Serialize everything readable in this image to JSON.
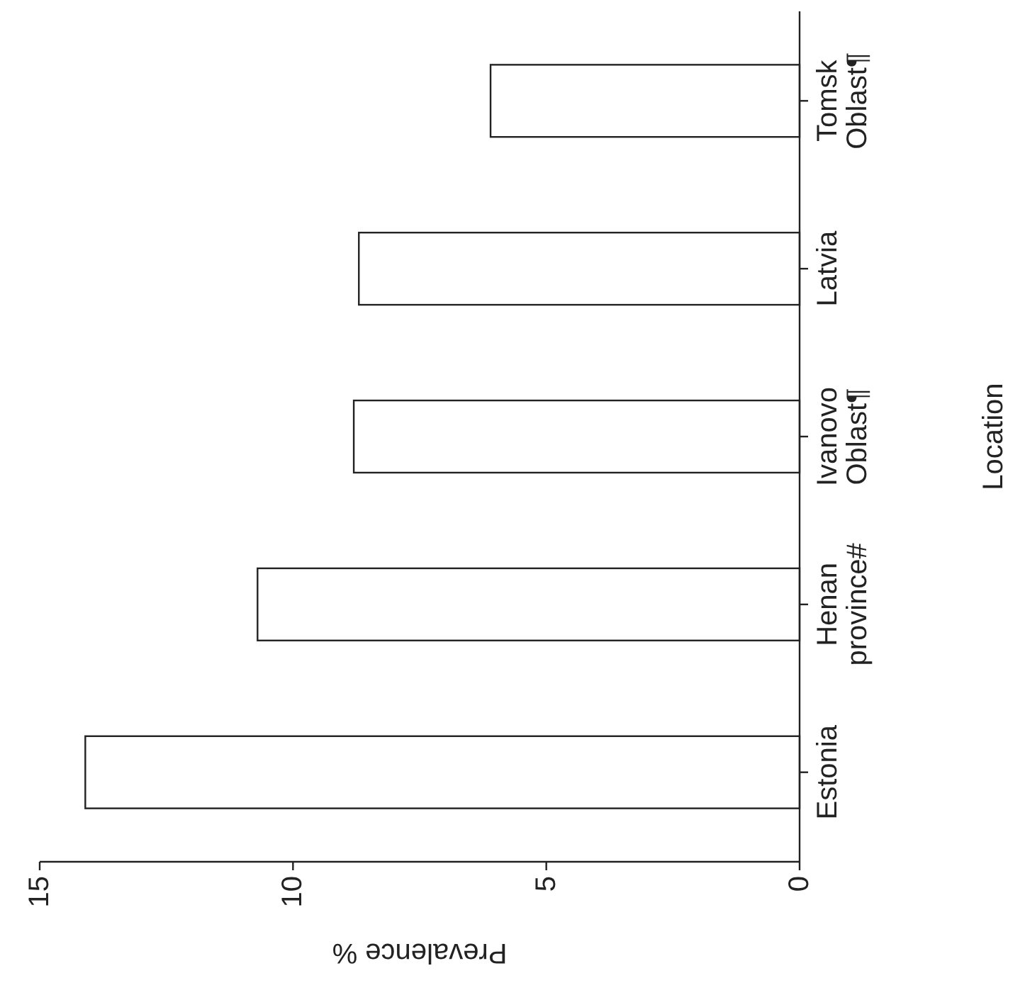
{
  "chart_data": {
    "type": "bar",
    "orientation": "horizontal",
    "xlabel": "Prevalence %",
    "ylabel": "Location",
    "categories": [
      "Tomsk Oblast¶",
      "Latvia",
      "Ivanovo Oblast¶",
      "Henan province#",
      "Estonia"
    ],
    "values": [
      6.1,
      8.7,
      8.8,
      10.7,
      14.1
    ],
    "color": "#ffffff",
    "xlim": [
      15,
      0
    ],
    "xticks": [
      0,
      5,
      10,
      15
    ],
    "grid": false
  }
}
